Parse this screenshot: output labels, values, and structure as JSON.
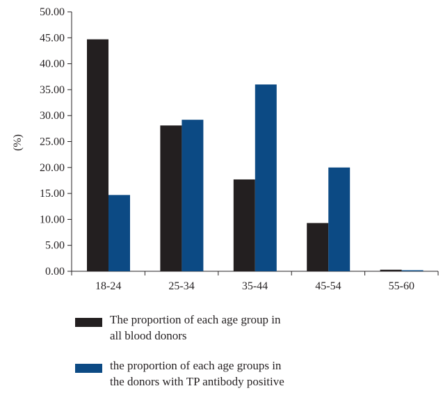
{
  "chart_data": {
    "type": "bar",
    "ylabel": "(%)",
    "ylim": [
      0,
      50
    ],
    "yticks": [
      "0.00",
      "5.00",
      "10.00",
      "15.00",
      "20.00",
      "25.00",
      "30.00",
      "35.00",
      "40.00",
      "45.00",
      "50.00"
    ],
    "categories": [
      "18-24",
      "25-34",
      "35-44",
      "45-54",
      "55-60"
    ],
    "series": [
      {
        "name": "The proportion of each age group in all blood donors",
        "color": "#231f20",
        "values": [
          44.7,
          28.1,
          17.7,
          9.3,
          0.3
        ]
      },
      {
        "name": "the proportion of each age groups in the donors with TP antibody positive",
        "color": "#0c4a84",
        "values": [
          14.7,
          29.2,
          36.0,
          20.0,
          0.2
        ]
      }
    ],
    "legend_position": "bottom-left",
    "grid": false
  }
}
